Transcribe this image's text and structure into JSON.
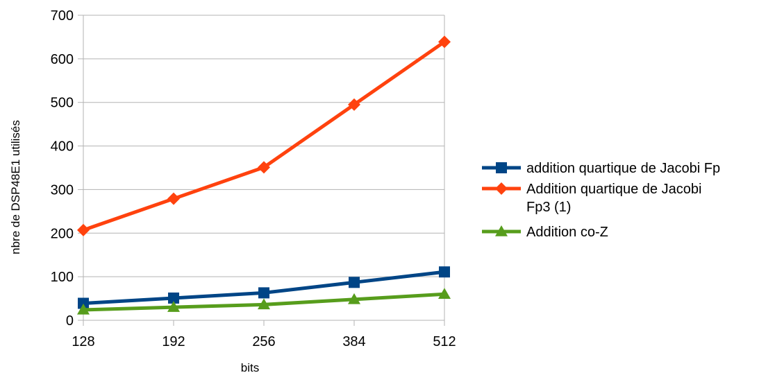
{
  "chart_data": {
    "type": "line",
    "title": "",
    "xlabel": "bits",
    "ylabel": "nbre de DSP48E1 utilisés",
    "categories": [
      "128",
      "192",
      "256",
      "384",
      "512"
    ],
    "ylim": [
      0,
      700
    ],
    "yticks": [
      "0",
      "100",
      "200",
      "300",
      "400",
      "500",
      "600",
      "700"
    ],
    "grid": true,
    "legend_position": "right",
    "series": [
      {
        "name": "addition quartique de Jacobi Fp",
        "values": [
          39,
          51,
          63,
          87,
          111
        ],
        "color": "#004586",
        "marker": "square"
      },
      {
        "name": "Addition quartique de Jacobi Fp3 (1)",
        "name_lines": [
          "Addition quartique de Jacobi",
          "Fp3 (1)"
        ],
        "values": [
          207,
          279,
          351,
          495,
          639
        ],
        "color": "#ff420e",
        "marker": "diamond"
      },
      {
        "name": "Addition co-Z",
        "values": [
          24,
          30,
          36,
          48,
          60
        ],
        "color": "#579d1c",
        "marker": "triangle"
      }
    ]
  }
}
